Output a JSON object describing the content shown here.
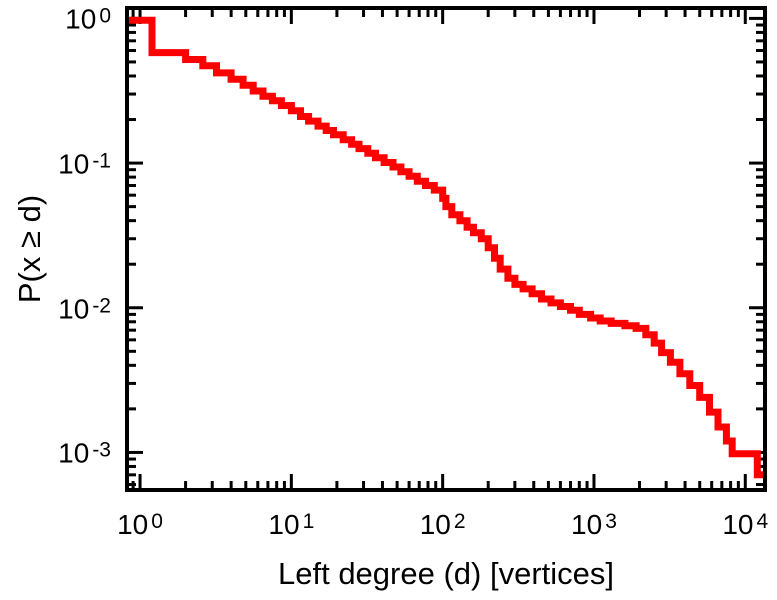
{
  "chart_data": {
    "type": "line",
    "subtype": "step-ccdf",
    "title": "",
    "xlabel": "Left degree (d) [vertices]",
    "ylabel": "P(x ≥ d)",
    "xscale": "log",
    "yscale": "log",
    "xlim": [
      0.82,
      13500
    ],
    "ylim": [
      0.00055,
      1.18
    ],
    "x_tick_base": "10",
    "x_tick_exponents": [
      "0",
      "1",
      "2",
      "3",
      "4"
    ],
    "y_tick_exponents": [
      "0",
      "-1",
      "-2",
      "-3"
    ],
    "line_color": "#ff0000",
    "line_width": 7,
    "axis_color": "#000000",
    "grid": false,
    "legend": "none",
    "steps": [
      [
        0.82,
        0.97
      ],
      [
        1.2,
        0.58
      ],
      [
        2,
        0.52
      ],
      [
        2.6,
        0.47
      ],
      [
        3.2,
        0.42
      ],
      [
        4,
        0.38
      ],
      [
        4.8,
        0.345
      ],
      [
        5.6,
        0.315
      ],
      [
        6.5,
        0.29
      ],
      [
        7.5,
        0.27
      ],
      [
        8.6,
        0.25
      ],
      [
        10,
        0.23
      ],
      [
        11.5,
        0.21
      ],
      [
        13,
        0.195
      ],
      [
        15,
        0.18
      ],
      [
        17,
        0.168
      ],
      [
        19,
        0.157
      ],
      [
        22,
        0.145
      ],
      [
        25,
        0.135
      ],
      [
        28,
        0.126
      ],
      [
        32,
        0.117
      ],
      [
        36,
        0.109
      ],
      [
        41,
        0.101
      ],
      [
        47,
        0.094
      ],
      [
        53,
        0.087
      ],
      [
        60,
        0.081
      ],
      [
        68,
        0.075
      ],
      [
        77,
        0.07
      ],
      [
        88,
        0.065
      ],
      [
        100,
        0.057
      ],
      [
        105,
        0.05
      ],
      [
        115,
        0.044
      ],
      [
        130,
        0.04
      ],
      [
        145,
        0.036
      ],
      [
        160,
        0.033
      ],
      [
        180,
        0.03
      ],
      [
        200,
        0.026
      ],
      [
        220,
        0.022
      ],
      [
        240,
        0.0185
      ],
      [
        270,
        0.016
      ],
      [
        300,
        0.0145
      ],
      [
        340,
        0.0135
      ],
      [
        390,
        0.0125
      ],
      [
        450,
        0.0115
      ],
      [
        520,
        0.0108
      ],
      [
        600,
        0.0102
      ],
      [
        700,
        0.0096
      ],
      [
        800,
        0.009
      ],
      [
        950,
        0.0085
      ],
      [
        1100,
        0.0081
      ],
      [
        1300,
        0.0078
      ],
      [
        1600,
        0.0075
      ],
      [
        1900,
        0.0072
      ],
      [
        2200,
        0.0065
      ],
      [
        2500,
        0.0057
      ],
      [
        2800,
        0.0049
      ],
      [
        3200,
        0.0042
      ],
      [
        3700,
        0.0035
      ],
      [
        4300,
        0.0029
      ],
      [
        5000,
        0.0024
      ],
      [
        5800,
        0.0019
      ],
      [
        6600,
        0.0015
      ],
      [
        7500,
        0.0012
      ],
      [
        8200,
        0.00098
      ],
      [
        12000,
        0.0007
      ]
    ]
  }
}
